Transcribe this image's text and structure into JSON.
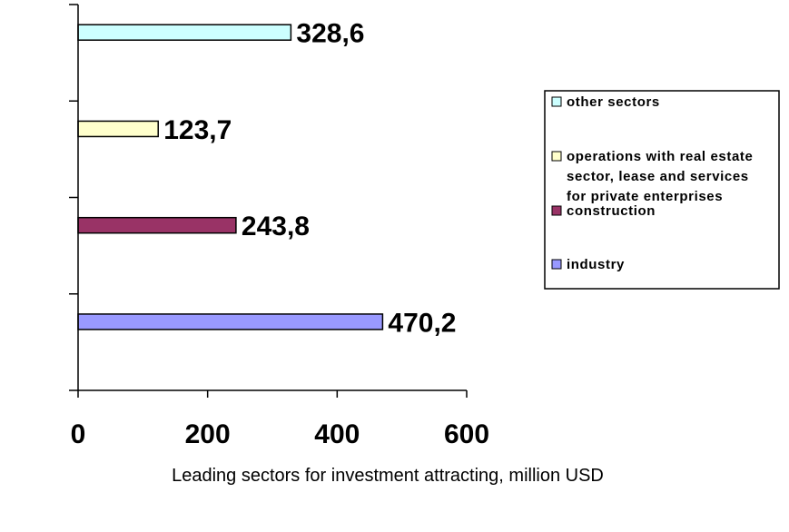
{
  "chart_data": {
    "type": "bar",
    "orientation": "horizontal",
    "categories": [
      "industry",
      "construction",
      "operations with real estate sector, lease and services for private enterprises",
      "other sectors"
    ],
    "values": [
      470.2,
      243.8,
      123.7,
      328.6
    ],
    "value_labels": [
      "470,2",
      "243,8",
      "123,7",
      "328,6"
    ],
    "colors": [
      "#9999ff",
      "#993366",
      "#ffffcc",
      "#ccffff"
    ],
    "xlabel": "Leading sectors for investment attracting, million USD",
    "xlim": [
      0,
      600
    ],
    "xticks": [
      0,
      200,
      400,
      600
    ],
    "grid": false,
    "legend": {
      "position": "right",
      "entries": [
        {
          "lines": [
            "other sectors"
          ],
          "color": "#ccffff"
        },
        {
          "lines": [
            "operations with real estate",
            "sector, lease and services",
            "for private enterprises"
          ],
          "color": "#ffffcc"
        },
        {
          "lines": [
            "construction"
          ],
          "color": "#993366"
        },
        {
          "lines": [
            "industry"
          ],
          "color": "#9999ff"
        }
      ]
    }
  }
}
